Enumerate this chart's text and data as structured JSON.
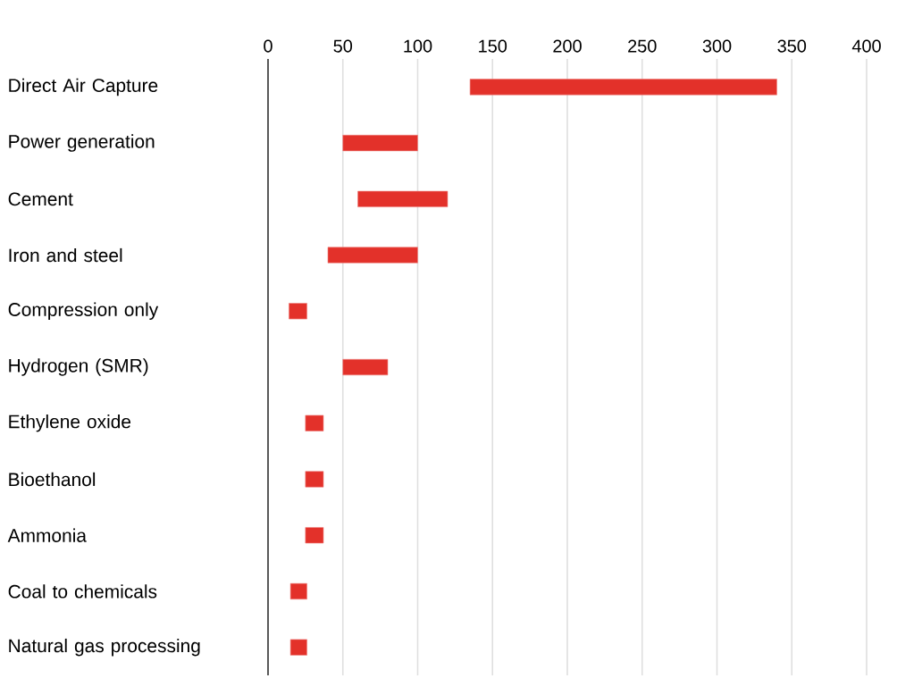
{
  "chart_data": {
    "type": "bar",
    "orientation": "horizontal",
    "categories": [
      "Direct Air Capture",
      "Power generation",
      "Cement",
      "Iron and steel",
      "Compression only",
      "Hydrogen (SMR)",
      "Ethylene oxide",
      "Bioethanol",
      "Ammonia",
      "Coal to chemicals",
      "Natural gas processing"
    ],
    "base": [
      135,
      50,
      60,
      40,
      14,
      50,
      25,
      25,
      25,
      15,
      15
    ],
    "values": [
      205,
      50,
      60,
      60,
      12,
      30,
      12,
      12,
      12,
      11,
      11
    ],
    "color": "#e3312a",
    "xlim": [
      0,
      400
    ],
    "xticks": [
      0,
      50,
      100,
      150,
      200,
      250,
      300,
      350,
      400
    ],
    "grid": "x"
  }
}
